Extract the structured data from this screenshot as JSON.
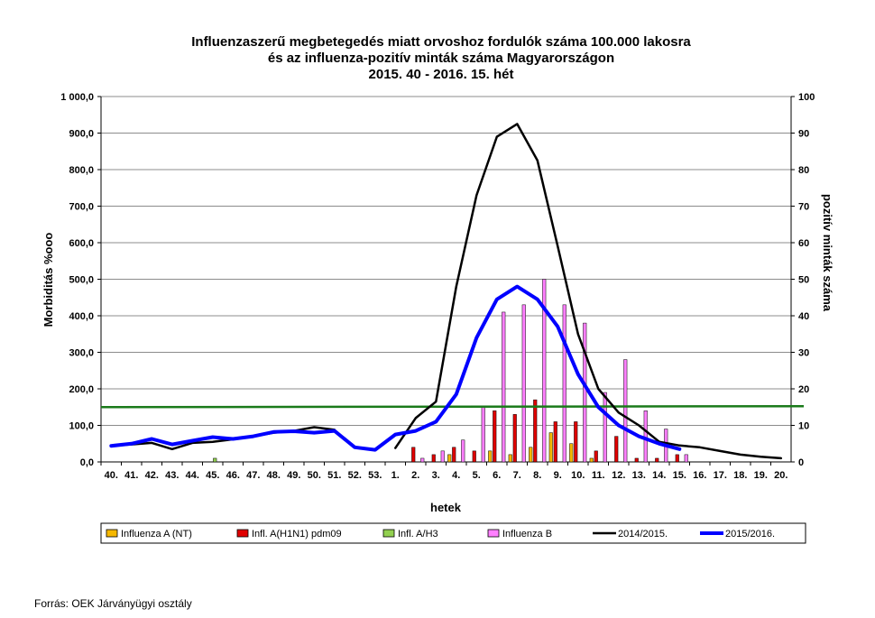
{
  "chart_data": {
    "type": "bar",
    "title": [
      "Influenzaszerű megbetegedés miatt orvoshoz fordulók száma 100.000 lakosra",
      "és az influenza-pozitív minták száma Magyarországon",
      "2015. 40 - 2016. 15. hét"
    ],
    "xlabel": "hetek",
    "ylabel_left": "Morbiditás %ooo",
    "ylabel_right": "pozitív minták száma",
    "ylim_left": [
      0,
      1000
    ],
    "ylim_right": [
      0,
      100
    ],
    "y_ticks_left": [
      "0,0",
      "100,0",
      "200,0",
      "300,0",
      "400,0",
      "500,0",
      "600,0",
      "700,0",
      "800,0",
      "900,0",
      "1 000,0"
    ],
    "y_ticks_right": [
      "0",
      "10",
      "20",
      "30",
      "40",
      "50",
      "60",
      "70",
      "80",
      "90",
      "100"
    ],
    "categories": [
      "40.",
      "41.",
      "42.",
      "43.",
      "44.",
      "45.",
      "46.",
      "47.",
      "48.",
      "49.",
      "50.",
      "51.",
      "52.",
      "53.",
      "1.",
      "2.",
      "3.",
      "4.",
      "5.",
      "6.",
      "7.",
      "8.",
      "9.",
      "10.",
      "11.",
      "12.",
      "13.",
      "14.",
      "15.",
      "16.",
      "17.",
      "18.",
      "19.",
      "20."
    ],
    "threshold": 150,
    "threshold_color": "#1a7a1a",
    "bar_series": [
      {
        "name": "Influenza A (NT)",
        "color": "#f5b800",
        "axis": "right",
        "values": [
          0,
          0,
          0,
          0,
          0,
          0,
          0,
          0,
          0,
          0,
          0,
          0,
          0,
          0,
          0,
          0,
          0,
          2,
          0,
          3,
          2,
          4,
          8,
          5,
          1,
          0,
          0,
          0,
          0,
          0,
          0,
          0,
          0,
          0
        ]
      },
      {
        "name": "Infl. A(H1N1) pdm09",
        "color": "#e00000",
        "axis": "right",
        "values": [
          0,
          0,
          0,
          0,
          0,
          0,
          0,
          0,
          0,
          0,
          0,
          0,
          0,
          0,
          0,
          4,
          2,
          4,
          3,
          14,
          13,
          17,
          11,
          11,
          3,
          7,
          1,
          1,
          2,
          0,
          0,
          0,
          0,
          0
        ]
      },
      {
        "name": "Infl. A/H3",
        "color": "#92d050",
        "axis": "right",
        "values": [
          0,
          0,
          0,
          0,
          0,
          1,
          0,
          0,
          0,
          0,
          0,
          0,
          0,
          0,
          0,
          0,
          0,
          0,
          0,
          0,
          0,
          0,
          0,
          0,
          0,
          0,
          0,
          0,
          0,
          0,
          0,
          0,
          0,
          0
        ]
      },
      {
        "name": "Influenza B",
        "color": "#ff80ff",
        "axis": "right",
        "values": [
          0,
          0,
          0,
          0,
          0,
          0,
          0,
          0,
          0,
          0,
          0,
          0,
          0,
          0,
          0,
          1,
          3,
          6,
          15,
          41,
          43,
          50,
          43,
          38,
          19,
          28,
          14,
          9,
          2,
          0,
          0,
          0,
          0,
          0
        ]
      }
    ],
    "line_series": [
      {
        "name": "2014/2015.",
        "color": "#000000",
        "width": 2.5,
        "axis": "left",
        "values": [
          45,
          48,
          52,
          35,
          52,
          55,
          62,
          70,
          80,
          85,
          95,
          88,
          null,
          null,
          38,
          120,
          165,
          480,
          730,
          890,
          925,
          825,
          590,
          350,
          200,
          135,
          100,
          55,
          45,
          40,
          30,
          20,
          14,
          10
        ]
      },
      {
        "name": "2015/2016.",
        "color": "#0000ff",
        "width": 4,
        "axis": "left",
        "values": [
          44,
          50,
          63,
          48,
          58,
          68,
          63,
          70,
          82,
          84,
          80,
          85,
          40,
          33,
          75,
          85,
          110,
          185,
          340,
          445,
          480,
          445,
          370,
          240,
          150,
          100,
          70,
          50,
          35,
          null,
          null,
          null,
          null,
          null
        ]
      }
    ],
    "legend_position": "bottom"
  },
  "source": "Forrás: OEK Járványügyi osztály"
}
